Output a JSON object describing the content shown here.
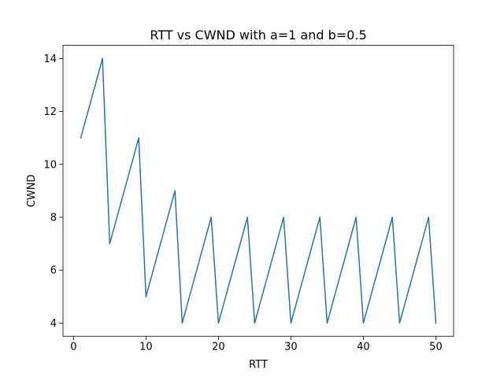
{
  "chart_data": {
    "type": "line",
    "title": "RTT vs CWND with a=1 and b=0.5",
    "xlabel": "RTT",
    "ylabel": "CWND",
    "xlim": [
      -1.45,
      52.45
    ],
    "ylim": [
      3.5,
      14.5
    ],
    "xticks": [
      0,
      10,
      20,
      30,
      40,
      50
    ],
    "yticks": [
      4,
      6,
      8,
      10,
      12,
      14
    ],
    "xtick_labels": [
      "0",
      "10",
      "20",
      "30",
      "40",
      "50"
    ],
    "ytick_labels": [
      "4",
      "6",
      "8",
      "10",
      "12",
      "14"
    ],
    "grid": false,
    "series": [
      {
        "name": "CWND",
        "color": "#1f77b4",
        "x": [
          1,
          4,
          5,
          9,
          10,
          14,
          15,
          19,
          20,
          24,
          25,
          29,
          30,
          34,
          35,
          39,
          40,
          44,
          45,
          49,
          50
        ],
        "y": [
          11,
          14,
          7,
          11,
          5,
          9,
          4,
          8,
          4,
          8,
          4,
          8,
          4,
          8,
          4,
          8,
          4,
          8,
          4,
          8,
          4
        ]
      }
    ]
  }
}
